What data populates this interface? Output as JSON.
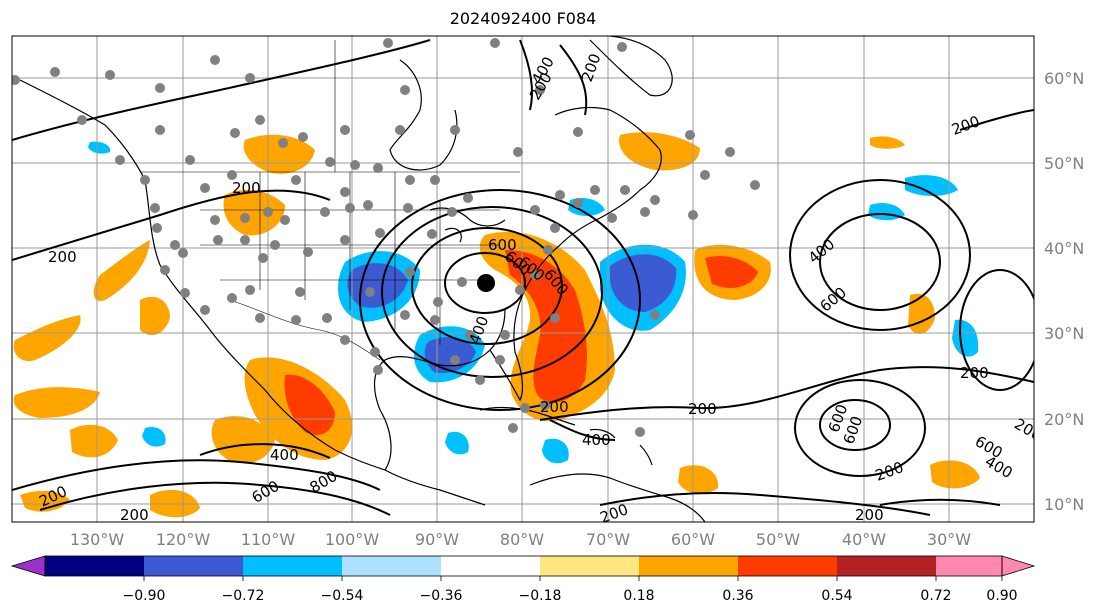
{
  "title": "2024092400 F084",
  "map": {
    "projection": "PlateCarree",
    "lon_range": [
      -140,
      -25
    ],
    "lat_range": [
      8,
      66
    ],
    "grid": true,
    "lat_ticks": [
      "60°N",
      "50°N",
      "40°N",
      "30°N",
      "20°N",
      "10°N"
    ],
    "lon_ticks": [
      "130°W",
      "120°W",
      "110°W",
      "100°W",
      "90°W",
      "80°W",
      "70°W",
      "60°W",
      "50°W",
      "40°W",
      "30°W"
    ],
    "contour_labels": [
      "200",
      "200",
      "200",
      "200",
      "400",
      "600",
      "200",
      "400",
      "600",
      "600",
      "200",
      "400",
      "600",
      "800",
      "200",
      "200",
      "400",
      "600",
      "200",
      "200",
      "400",
      "600",
      "200",
      "200",
      "200",
      "600",
      "400",
      "600",
      "600",
      "200"
    ],
    "storm_center": {
      "lon": -84.5,
      "lat": 36.5
    },
    "colors": {
      "ocean": "#ffffff",
      "land_outline": "#000000",
      "grid": "#999999",
      "station": "#808080",
      "contour": "#000000"
    }
  },
  "colorbar": {
    "ticks": [
      "−0.90",
      "−0.72",
      "−0.54",
      "−0.36",
      "−0.18",
      "0.18",
      "0.36",
      "0.54",
      "0.72",
      "0.90"
    ],
    "colors": [
      "#9932cc",
      "#000080",
      "#3c5ad2",
      "#00bfff",
      "#b0e0ff",
      "#ffffff",
      "#ffe680",
      "#ffa500",
      "#ff3c00",
      "#b22222",
      "#ff88b0"
    ]
  }
}
